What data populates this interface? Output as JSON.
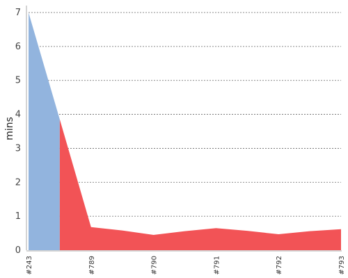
{
  "chart_data": {
    "type": "area",
    "ylabel": "mins",
    "xlabel": "",
    "ylim": [
      0,
      7
    ],
    "yticks": [
      0,
      1,
      2,
      3,
      4,
      5,
      6,
      7
    ],
    "grid": "horizontal-dotted",
    "categories": [
      "#243",
      "",
      "#789",
      "",
      "#790",
      "",
      "#791",
      "",
      "#792",
      "",
      "#793"
    ],
    "values": [
      7.0,
      3.85,
      0.68,
      0.58,
      0.45,
      0.56,
      0.65,
      0.57,
      0.47,
      0.56,
      0.62
    ],
    "segment_split_index": 1,
    "colors": {
      "segment_1": "#92b4de",
      "segment_2": "#f25356",
      "grid": "#666666",
      "axis": "#aaaaaa"
    }
  }
}
